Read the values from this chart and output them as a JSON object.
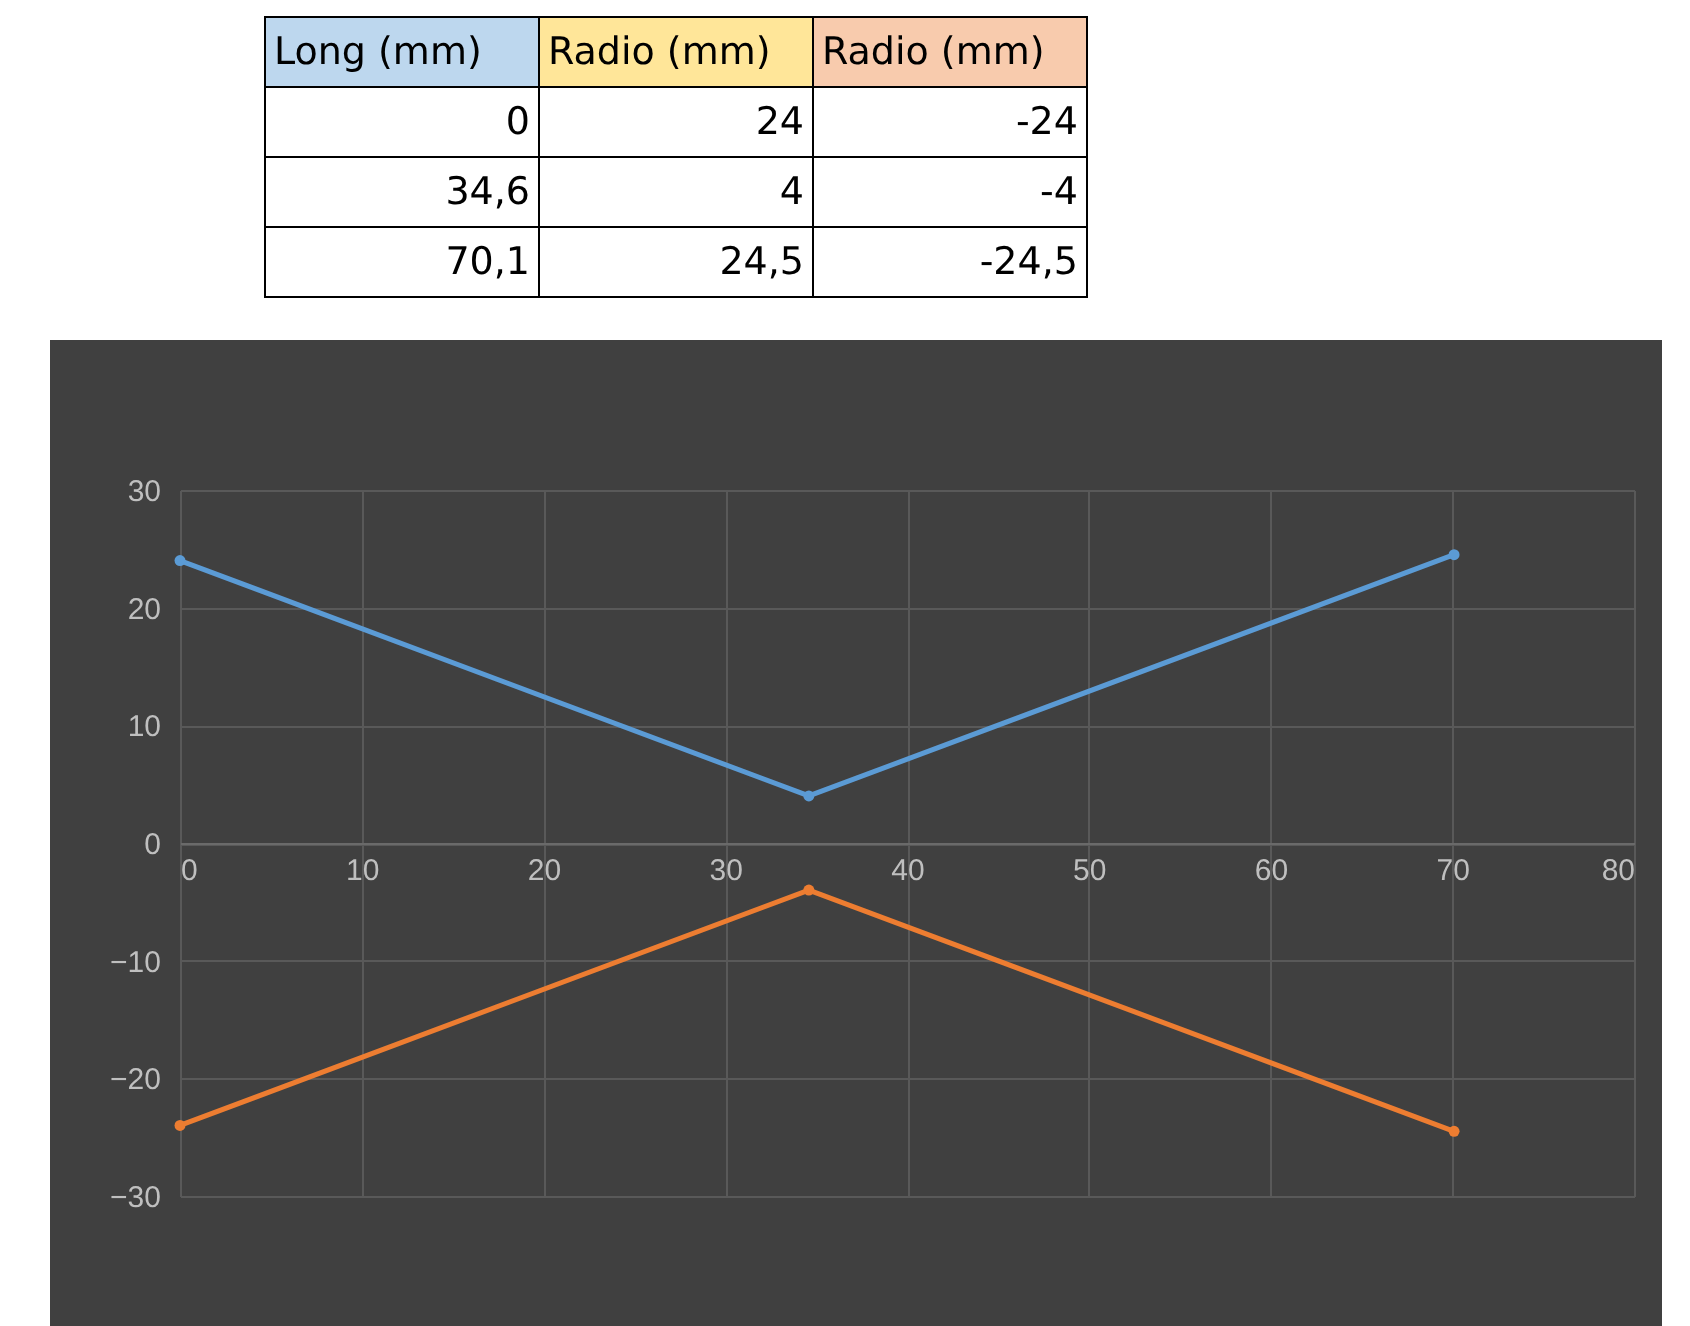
{
  "chart_data": {
    "type": "line",
    "x": [
      0,
      34.6,
      70.1
    ],
    "annotations": [
      "Long (mm)",
      "Radio (mm)",
      "Radio (mm)",
      "0",
      "24",
      "-24",
      "34,6",
      "4",
      "-4",
      "70,1",
      "24,5",
      "-24,5"
    ],
    "series": [
      {
        "color": "#5b9bd5",
        "values": [
          24,
          4,
          24.5
        ]
      },
      {
        "color": "#ed7d31",
        "values": [
          -24,
          -4,
          -24.5
        ]
      }
    ],
    "xlim": [
      0,
      80
    ],
    "xticks": [
      0,
      10,
      20,
      30,
      40,
      50,
      60,
      70,
      80
    ],
    "ylim": [
      -30,
      30
    ],
    "yticks": [
      -30,
      -20,
      -10,
      0,
      10,
      20,
      30
    ],
    "grid": true,
    "marker": "circle",
    "line_style": "solid"
  }
}
